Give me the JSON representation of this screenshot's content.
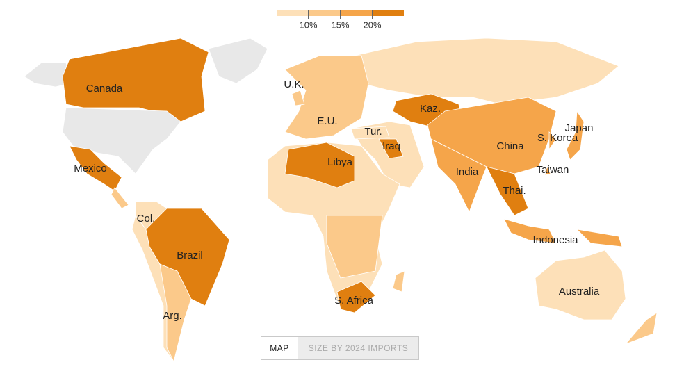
{
  "legend": {
    "ticks": [
      "10%",
      "15%",
      "20%"
    ]
  },
  "labels": [
    "Canada",
    "U.K.",
    "E.U.",
    "Kaz.",
    "Tur.",
    "Iraq",
    "Japan",
    "China",
    "S. Korea",
    "Mexico",
    "Libya",
    "India",
    "Taiwan",
    "Thai.",
    "Col.",
    "Brazil",
    "Indonesia",
    "Australia",
    "S. Africa",
    "Arg."
  ],
  "buttons": [
    "MAP",
    "SIZE BY 2024 IMPORTS"
  ]
}
